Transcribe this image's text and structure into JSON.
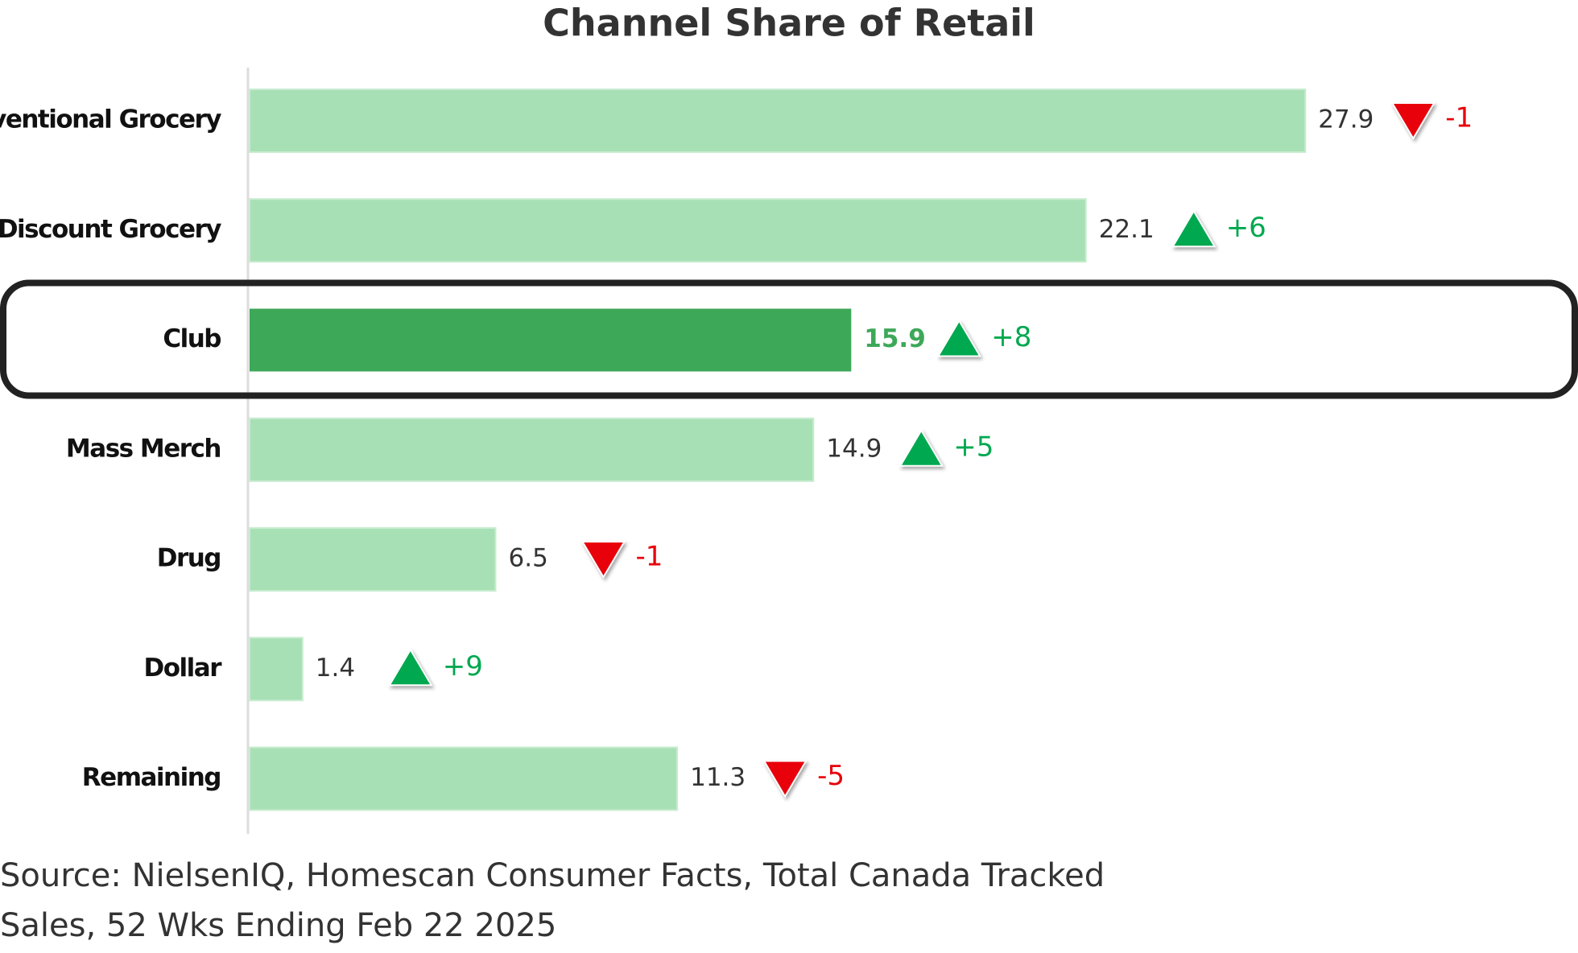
{
  "chart_data": {
    "type": "bar",
    "orientation": "horizontal",
    "title": "Channel Share of Retail",
    "categories": [
      "Conventional Grocery",
      "Discount Grocery",
      "Club",
      "Mass Merch",
      "Drug",
      "Dollar",
      "Remaining"
    ],
    "values": [
      27.9,
      22.1,
      15.9,
      14.9,
      6.5,
      1.4,
      11.3
    ],
    "color": "#a8e0b5",
    "highlight": "Club",
    "highlight_color": "#3da858",
    "changes": [
      -1,
      6,
      8,
      5,
      -1,
      9,
      -5
    ],
    "change_labels": [
      "-1",
      "+6",
      "+8",
      "+5",
      "-1",
      "+9",
      "-5"
    ],
    "up_color": "#00a84f",
    "down_color": "#e8000b",
    "source": [
      "Source: NielsenIQ, Homescan Consumer Facts, Total Canada Tracked",
      "Sales, 52 Wks Ending Feb 22 2025"
    ]
  }
}
